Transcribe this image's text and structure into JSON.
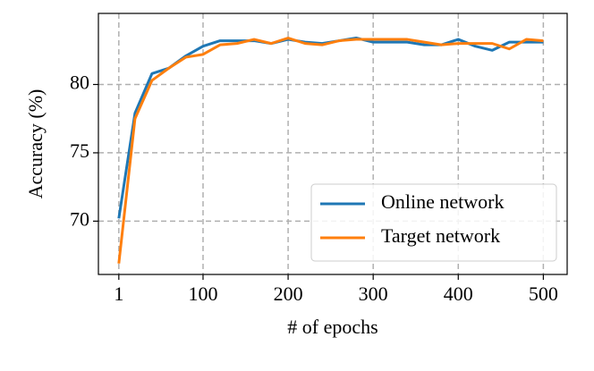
{
  "chart_data": {
    "type": "line",
    "x_label": "# of epochs",
    "y_label": "Accuracy (%)",
    "x": [
      1,
      20,
      40,
      60,
      80,
      100,
      120,
      140,
      160,
      180,
      200,
      220,
      240,
      260,
      280,
      300,
      320,
      340,
      360,
      380,
      400,
      420,
      440,
      460,
      480,
      500
    ],
    "series": [
      {
        "name": "Online network",
        "color": "#1f77b4",
        "values": [
          70.2,
          77.9,
          80.8,
          81.2,
          82.1,
          82.8,
          83.2,
          83.2,
          83.2,
          83.0,
          83.3,
          83.1,
          83.0,
          83.2,
          83.4,
          83.1,
          83.1,
          83.1,
          82.9,
          82.9,
          83.3,
          82.8,
          82.5,
          83.1,
          83.1,
          83.1
        ]
      },
      {
        "name": "Target network",
        "color": "#ff7f0e",
        "values": [
          66.9,
          77.5,
          80.3,
          81.2,
          82.0,
          82.2,
          82.9,
          83.0,
          83.3,
          83.0,
          83.4,
          83.0,
          82.9,
          83.2,
          83.3,
          83.3,
          83.3,
          83.3,
          83.1,
          82.9,
          83.0,
          83.0,
          83.0,
          82.6,
          83.3,
          83.2
        ]
      }
    ],
    "xlim": [
      -23,
      528
    ],
    "ylim": [
      66.1,
      85.2
    ],
    "xticks": [
      1,
      100,
      200,
      300,
      400,
      500
    ],
    "yticks": [
      70,
      75,
      80
    ],
    "grid": true,
    "legend": "lower right"
  }
}
